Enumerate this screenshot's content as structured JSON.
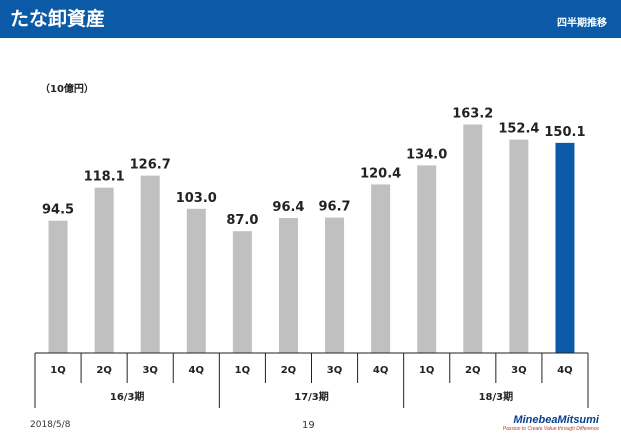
{
  "header": {
    "title": "たな卸資産",
    "subtitle": "四半期推移"
  },
  "footer": {
    "date": "2018/5/8",
    "page": "19",
    "brand": "MinebeaMitsumi",
    "tagline": "Passion to Create Value through Difference"
  },
  "colors": {
    "header": "#0a5aa8",
    "bar": "#c0c0c0",
    "highlight": "#0a5aa8"
  },
  "chart_data": {
    "type": "bar",
    "unit_label": "（10億円）",
    "categories": [
      "1Q",
      "2Q",
      "3Q",
      "4Q",
      "1Q",
      "2Q",
      "3Q",
      "4Q",
      "1Q",
      "2Q",
      "3Q",
      "4Q"
    ],
    "groups": [
      {
        "label": "16/3期",
        "count": 4
      },
      {
        "label": "17/3期",
        "count": 4
      },
      {
        "label": "18/3期",
        "count": 4
      }
    ],
    "values": [
      94.5,
      118.1,
      126.7,
      103.0,
      87.0,
      96.4,
      96.7,
      120.4,
      134.0,
      163.2,
      152.4,
      150.1
    ],
    "value_labels": [
      "94.5",
      "118.1",
      "126.7",
      "103.0",
      "87.0",
      "96.4",
      "96.7",
      "120.4",
      "134.0",
      "163.2",
      "152.4",
      "150.1"
    ],
    "highlight_index": 11,
    "ylim": [
      0,
      170
    ],
    "grid": false,
    "legend": "none"
  }
}
